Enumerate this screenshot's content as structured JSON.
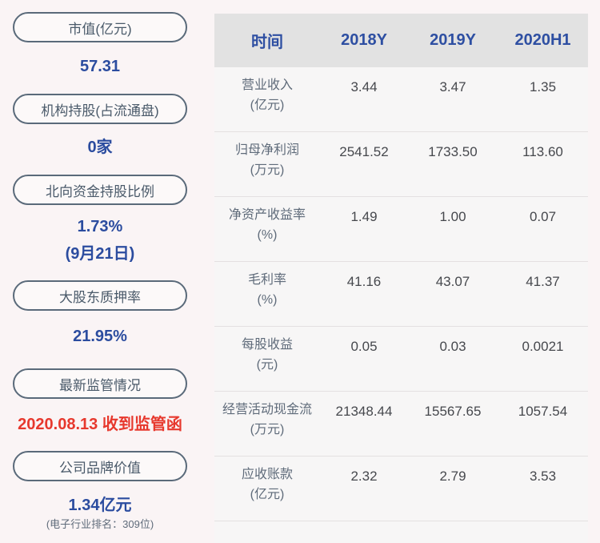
{
  "colors": {
    "page_bg": "#faf4f5",
    "table_bg": "#f7f6f6",
    "header_bg": "#e2e2e2",
    "accent_blue": "#2b4c9f",
    "alert_red": "#e7382d",
    "pill_border": "#5a6a7a"
  },
  "sidebar": {
    "items": [
      {
        "label": "市值(亿元)",
        "value": "57.31"
      },
      {
        "label": "机构持股(占流通盘)",
        "value": "0家"
      },
      {
        "label": "北向资金持股比例",
        "value": "1.73%",
        "sub": "(9月21日)"
      },
      {
        "label": "大股东质押率",
        "value": "21.95%"
      },
      {
        "label": "最新监管情况",
        "value": "2020.08.13 收到监管函"
      },
      {
        "label": "公司品牌价值",
        "value": "1.34亿元",
        "note": "(电子行业排名：309位)"
      }
    ]
  },
  "chart_data": {
    "type": "table",
    "columns": [
      "时间",
      "2018Y",
      "2019Y",
      "2020H1"
    ],
    "rows": [
      {
        "label": "营业收入",
        "unit": "(亿元)",
        "values": [
          "3.44",
          "3.47",
          "1.35"
        ]
      },
      {
        "label": "归母净利润",
        "unit": "(万元)",
        "values": [
          "2541.52",
          "1733.50",
          "113.60"
        ]
      },
      {
        "label": "净资产收益率",
        "unit": "(%)",
        "values": [
          "1.49",
          "1.00",
          "0.07"
        ]
      },
      {
        "label": "毛利率",
        "unit": "(%)",
        "values": [
          "41.16",
          "43.07",
          "41.37"
        ]
      },
      {
        "label": "每股收益",
        "unit": "(元)",
        "values": [
          "0.05",
          "0.03",
          "0.0021"
        ]
      },
      {
        "label": "经营活动现金流",
        "unit": "(万元)",
        "values": [
          "21348.44",
          "15567.65",
          "1057.54"
        ]
      },
      {
        "label": "应收账款",
        "unit": "(亿元)",
        "values": [
          "2.32",
          "2.79",
          "3.53"
        ]
      }
    ]
  }
}
